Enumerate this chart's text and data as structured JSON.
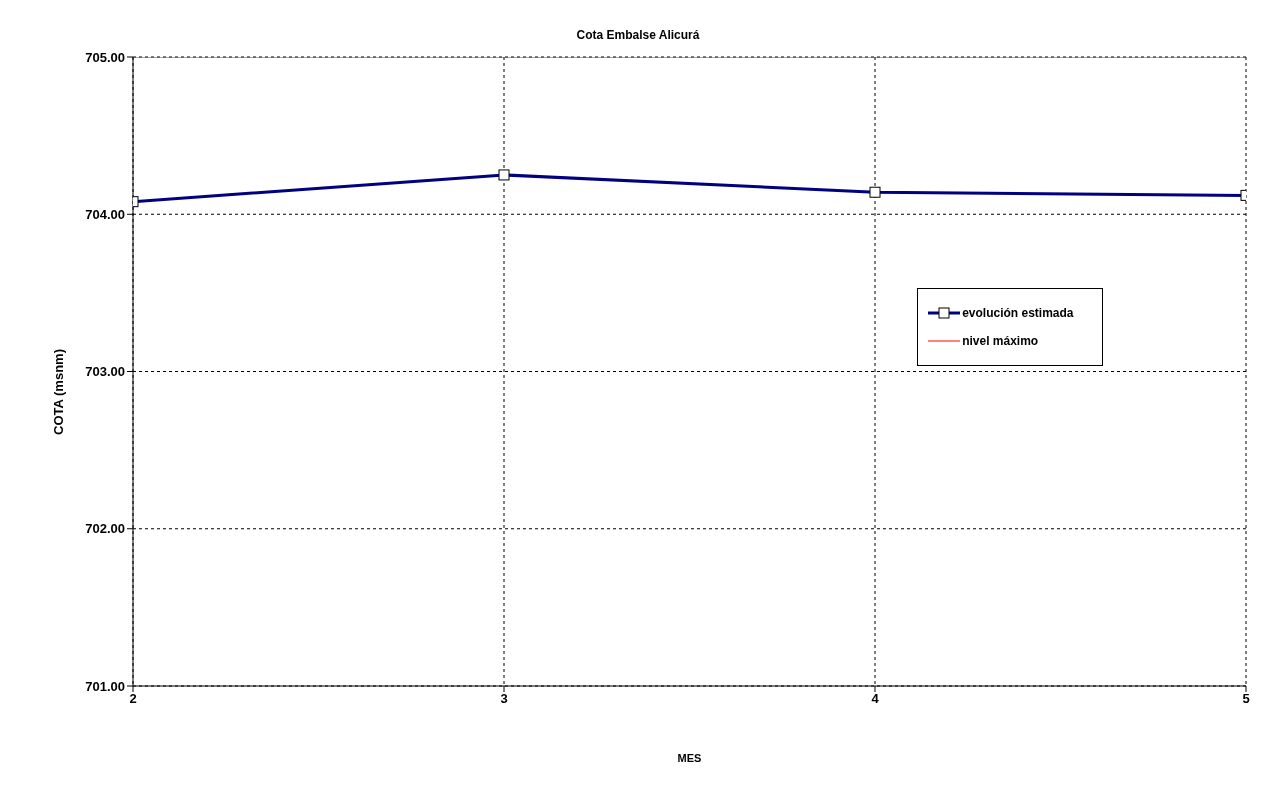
{
  "chart_data": {
    "type": "line",
    "title": "Cota Embalse Alicurá",
    "xlabel": "MES",
    "ylabel": "COTA (msnm)",
    "x": [
      2,
      3,
      4,
      5
    ],
    "xlim": [
      2,
      5
    ],
    "xticks": [
      2,
      3,
      4,
      5
    ],
    "ylim": [
      701,
      705
    ],
    "yticks": [
      {
        "value": 701,
        "label": "701.00"
      },
      {
        "value": 702,
        "label": "702.00"
      },
      {
        "value": 703,
        "label": "703.00"
      },
      {
        "value": 704,
        "label": "704.00"
      },
      {
        "value": 705,
        "label": "705.00"
      }
    ],
    "series": [
      {
        "name": "evolución estimada",
        "color": "#000080",
        "values": [
          704.08,
          704.25,
          704.14,
          704.12
        ],
        "marker": "square"
      },
      {
        "name": "nivel máximo",
        "color": "#ff0000",
        "values": [
          705,
          705,
          705,
          705
        ],
        "marker": "none"
      }
    ],
    "grid": true,
    "line_style": "solid",
    "legend": "right"
  }
}
